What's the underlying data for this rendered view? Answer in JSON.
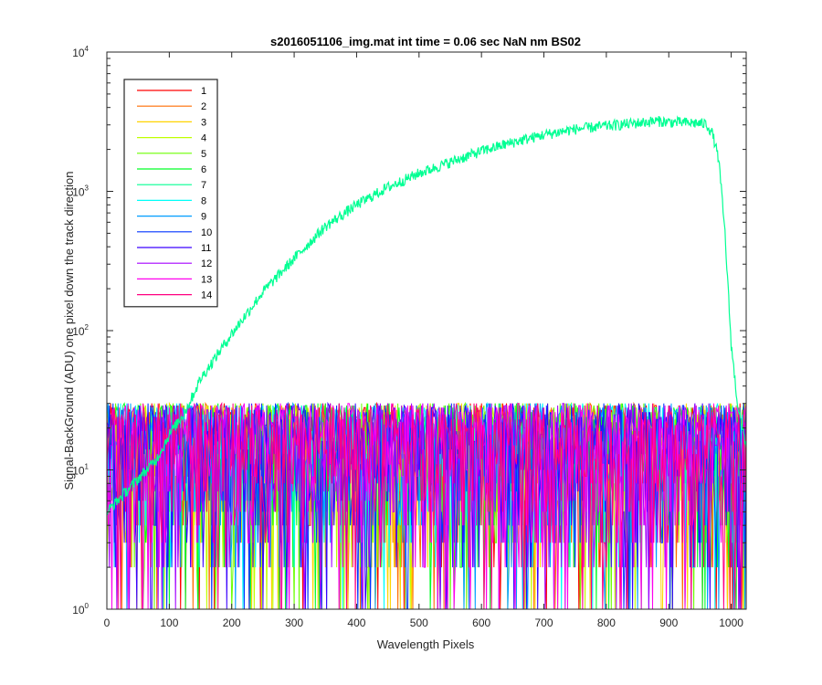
{
  "chart_data": {
    "type": "line",
    "title": "s2016051106_img.mat int time = 0.06 sec  NaN nm BS02",
    "xlabel": "Wavelength Pixels",
    "ylabel": "Signal-BackGround (ADU) one pixel down the track direction",
    "xlim": [
      0,
      1024
    ],
    "ylim": [
      1,
      10000
    ],
    "yscale": "log",
    "grid": false,
    "legend_location": "top-left",
    "x_ticks": [
      "0",
      "100",
      "200",
      "300",
      "400",
      "500",
      "600",
      "700",
      "800",
      "900",
      "1000"
    ],
    "y_ticks": [
      {
        "base": "10",
        "exp": "0"
      },
      {
        "base": "10",
        "exp": "1"
      },
      {
        "base": "10",
        "exp": "2"
      },
      {
        "base": "10",
        "exp": "3"
      },
      {
        "base": "10",
        "exp": "4"
      }
    ],
    "series": [
      {
        "name": "1",
        "color": "#ff0000",
        "noise_max": 30
      },
      {
        "name": "2",
        "color": "#ff6d00",
        "noise_max": 30
      },
      {
        "name": "3",
        "color": "#ffd400",
        "noise_max": 30
      },
      {
        "name": "4",
        "color": "#c0ff00",
        "noise_max": 30
      },
      {
        "name": "5",
        "color": "#6bff00",
        "noise_max": 30
      },
      {
        "name": "6",
        "color": "#00ff26",
        "noise_max": 30
      },
      {
        "name": "7",
        "color": "#00ff93",
        "profile": {
          "x": [
            0,
            80,
            100,
            125,
            150,
            200,
            250,
            300,
            350,
            400,
            450,
            500,
            550,
            600,
            650,
            700,
            750,
            800,
            850,
            880,
            900,
            940,
            960,
            970,
            980,
            990,
            1000,
            1010,
            1024
          ],
          "y": [
            5,
            12,
            18,
            26,
            45,
            95,
            190,
            330,
            560,
            800,
            1070,
            1350,
            1620,
            1950,
            2250,
            2550,
            2800,
            2950,
            3100,
            3200,
            3150,
            3100,
            3050,
            2600,
            1700,
            500,
            80,
            30,
            15
          ]
        }
      },
      {
        "name": "8",
        "color": "#00fff9",
        "noise_max": 30
      },
      {
        "name": "9",
        "color": "#009eff",
        "noise_max": 30
      },
      {
        "name": "10",
        "color": "#0033ff",
        "noise_max": 30
      },
      {
        "name": "11",
        "color": "#3a00ff",
        "noise_max": 30
      },
      {
        "name": "12",
        "color": "#a500ff",
        "noise_max": 30
      },
      {
        "name": "13",
        "color": "#ff00ee",
        "noise_max": 30
      },
      {
        "name": "14",
        "color": "#ff0080",
        "noise_max": 30
      }
    ]
  }
}
